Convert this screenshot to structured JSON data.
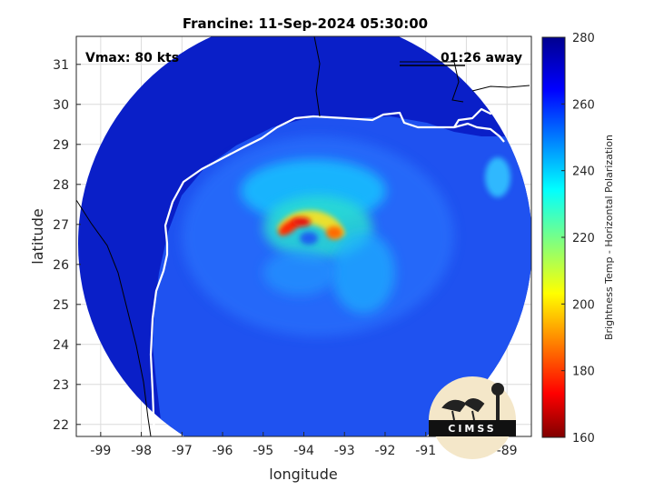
{
  "chart_data": {
    "type": "heatmap",
    "title": "Francine: 11-Sep-2024 05:30:00",
    "xlabel": "longitude",
    "ylabel": "latitude",
    "xlim": [
      -99.6,
      -88.4
    ],
    "ylim": [
      21.7,
      31.7
    ],
    "xticks": [
      -99,
      -98,
      -97,
      -96,
      -95,
      -94,
      -93,
      -92,
      -91,
      -90,
      -89
    ],
    "yticks": [
      22,
      23,
      24,
      25,
      26,
      27,
      28,
      29,
      30,
      31
    ],
    "grid": true,
    "colorbar": {
      "label": "Brightness Temp - Horizontal Polarization",
      "range": [
        160,
        280
      ],
      "ticks": [
        160,
        180,
        200,
        220,
        240,
        260,
        280
      ],
      "colormap": "jet"
    },
    "annotations": {
      "vmax": "Vmax: 80 kts",
      "time_offset": "01:26 away"
    },
    "storm_center": {
      "lon": -94.2,
      "lat": 26.8
    },
    "swath_center": {
      "lon": -94.0,
      "lat": 26.9
    },
    "features": [
      {
        "lon": -94.5,
        "lat": 26.9,
        "value": 185
      },
      {
        "lon": -94.3,
        "lat": 27.0,
        "value": 200
      },
      {
        "lon": -93.7,
        "lat": 27.1,
        "value": 205
      },
      {
        "lon": -93.1,
        "lat": 26.8,
        "value": 198
      },
      {
        "lon": -94.0,
        "lat": 27.2,
        "value": 225
      },
      {
        "lon": -94.8,
        "lat": 27.4,
        "value": 230
      },
      {
        "lon": -93.5,
        "lat": 27.8,
        "value": 238
      },
      {
        "lon": -92.8,
        "lat": 26.3,
        "value": 240
      },
      {
        "lon": -93.9,
        "lat": 26.2,
        "value": 245
      },
      {
        "lon": -89.3,
        "lat": 28.0,
        "value": 240
      },
      {
        "lon": -92.5,
        "lat": 25.3,
        "value": 250
      }
    ],
    "background_values": {
      "land": 278,
      "ocean": 262
    }
  },
  "logo": {
    "text": "CIMSS"
  }
}
